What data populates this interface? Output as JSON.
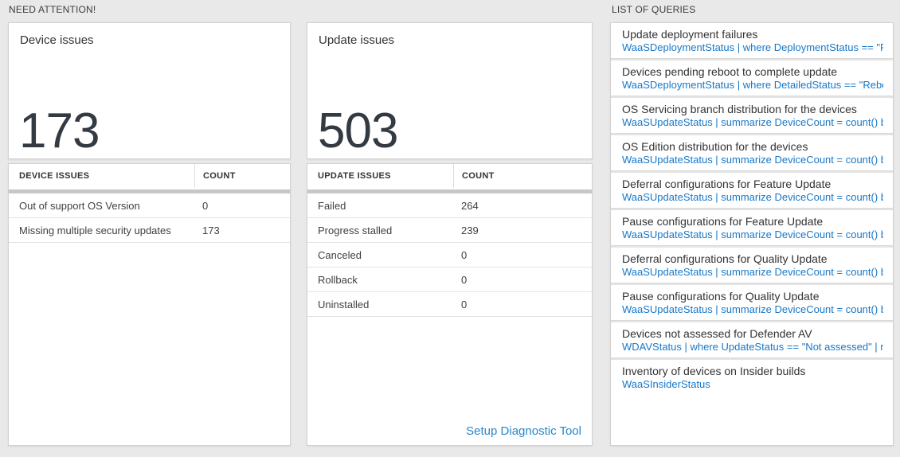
{
  "headers": {
    "need_attention": "NEED ATTENTION!",
    "list_of_queries": "LIST OF QUERIES"
  },
  "device_tile": {
    "title": "Device issues",
    "big_number": "173",
    "table": {
      "columns": [
        "DEVICE ISSUES",
        "COUNT"
      ],
      "rows": [
        {
          "label": "Out of support OS Version",
          "count": "0"
        },
        {
          "label": "Missing multiple security updates",
          "count": "173"
        }
      ]
    }
  },
  "update_tile": {
    "title": "Update issues",
    "big_number": "503",
    "table": {
      "columns": [
        "UPDATE ISSUES",
        "COUNT"
      ],
      "rows": [
        {
          "label": "Failed",
          "count": "264"
        },
        {
          "label": "Progress stalled",
          "count": "239"
        },
        {
          "label": "Canceled",
          "count": "0"
        },
        {
          "label": "Rollback",
          "count": "0"
        },
        {
          "label": "Uninstalled",
          "count": "0"
        }
      ]
    },
    "footer_link": "Setup Diagnostic Tool"
  },
  "query_list": {
    "items": [
      {
        "title": "Update deployment failures",
        "query": "WaaSDeploymentStatus | where DeploymentStatus == \"Failed\" |..."
      },
      {
        "title": "Devices pending reboot to complete update",
        "query": "WaaSDeploymentStatus | where DetailedStatus == \"Reboot pend..."
      },
      {
        "title": "OS Servicing branch distribution for the devices",
        "query": "WaaSUpdateStatus | summarize DeviceCount = count() by OSSer..."
      },
      {
        "title": "OS Edition distribution for the devices",
        "query": "WaaSUpdateStatus | summarize DeviceCount = count() by OSEdit..."
      },
      {
        "title": "Deferral configurations for Feature Update",
        "query": "WaaSUpdateStatus | summarize DeviceCount = count() by Featur..."
      },
      {
        "title": "Pause configurations for Feature Update",
        "query": "WaaSUpdateStatus | summarize DeviceCount = count() by Featur..."
      },
      {
        "title": "Deferral configurations for Quality Update",
        "query": "WaaSUpdateStatus | summarize DeviceCount = count() by Qualit..."
      },
      {
        "title": "Pause configurations for Quality Update",
        "query": "WaaSUpdateStatus | summarize DeviceCount = count() by Qualit..."
      },
      {
        "title": "Devices not assessed for Defender AV",
        "query": "WDAVStatus | where UpdateStatus == \"Not assessed\" | render ta..."
      },
      {
        "title": "Inventory of devices on Insider builds",
        "query": "WaaSInsiderStatus"
      }
    ]
  },
  "colors": {
    "page_background": "#e9e9e9",
    "card_border": "#d1d1d1",
    "query_link_blue": "#1878c8",
    "setup_link_blue": "#2787cc",
    "big_number_text": "#333a42",
    "table_header_bar": "#c7c7c7"
  }
}
